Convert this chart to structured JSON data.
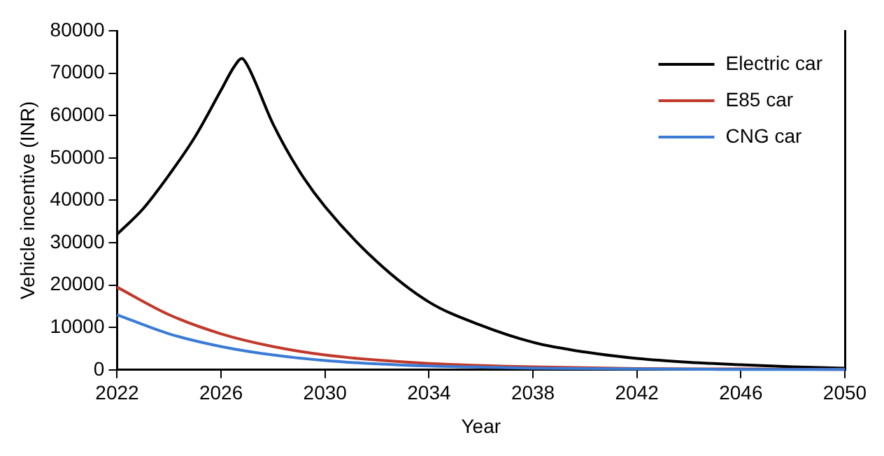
{
  "chart_data": {
    "type": "line",
    "xlabel": "Year",
    "ylabel": "Vehicle incentive (INR)",
    "xlim": [
      2022,
      2050
    ],
    "xticks": [
      2022,
      2026,
      2030,
      2034,
      2038,
      2042,
      2046,
      2050
    ],
    "ylim": [
      0,
      80000
    ],
    "yticks": [
      0,
      10000,
      20000,
      30000,
      40000,
      50000,
      60000,
      70000,
      80000
    ],
    "grid": false,
    "legend": "top right",
    "marker": "none",
    "line_style": "solid",
    "series": [
      {
        "name": "Electric car",
        "color": "#000000",
        "x": [
          2022,
          2023,
          2024,
          2025,
          2026,
          2026.5,
          2026.8,
          2027,
          2028,
          2029,
          2030,
          2032,
          2034,
          2036,
          2038,
          2040,
          2042,
          2044,
          2046,
          2048,
          2050
        ],
        "values": [
          32000,
          38000,
          46000,
          55000,
          66000,
          71500,
          73500,
          72000,
          58000,
          47000,
          38500,
          25500,
          16000,
          10500,
          6500,
          4200,
          2700,
          1800,
          1200,
          700,
          400
        ]
      },
      {
        "name": "E85 car",
        "color": "#c0392b",
        "x": [
          2022,
          2024,
          2026,
          2028,
          2030,
          2032,
          2034,
          2038,
          2042,
          2046,
          2050
        ],
        "values": [
          19500,
          13000,
          8500,
          5500,
          3500,
          2300,
          1500,
          700,
          300,
          200,
          100
        ]
      },
      {
        "name": "CNG car",
        "color": "#3a7bd5",
        "x": [
          2022,
          2024,
          2026,
          2028,
          2030,
          2032,
          2034,
          2038,
          2042,
          2046,
          2050
        ],
        "values": [
          13000,
          8500,
          5500,
          3500,
          2200,
          1400,
          900,
          400,
          200,
          100,
          100
        ]
      }
    ]
  }
}
